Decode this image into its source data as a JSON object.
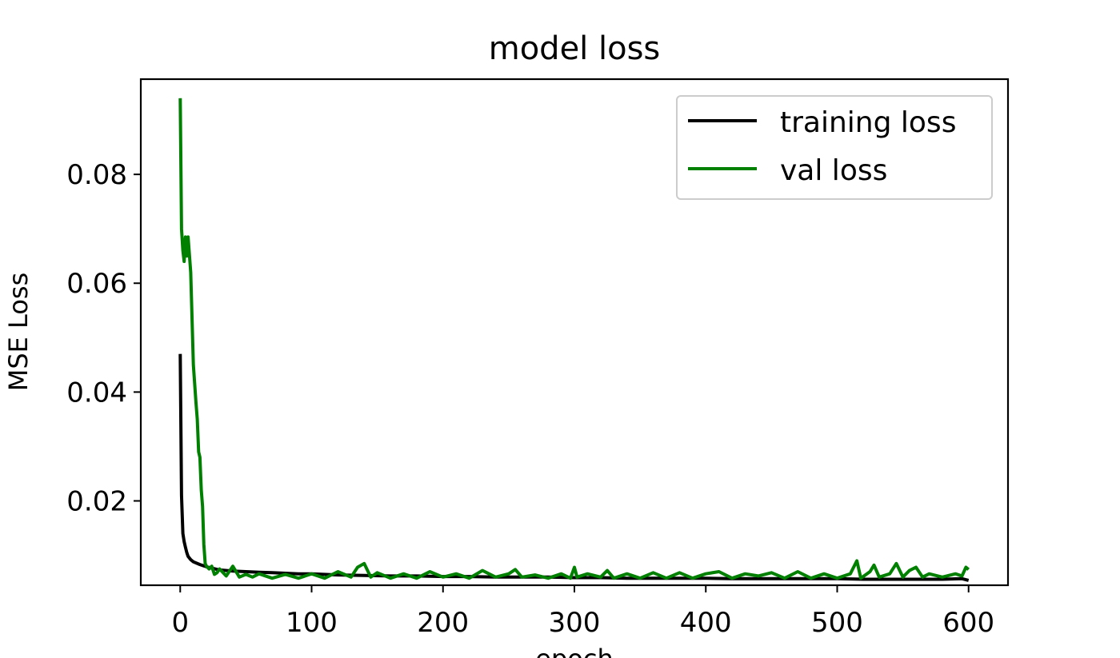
{
  "chart_data": {
    "type": "line",
    "title": "model loss",
    "xlabel": "epoch",
    "ylabel": "MSE Loss",
    "xlim": [
      -30,
      630
    ],
    "ylim": [
      0.0045,
      0.0975
    ],
    "xticks": [
      0,
      100,
      200,
      300,
      400,
      500,
      600
    ],
    "yticks": [
      0.02,
      0.04,
      0.06,
      0.08
    ],
    "ytick_labels": [
      "0.02",
      "0.04",
      "0.06",
      "0.08"
    ],
    "grid": false,
    "legend": "top-right",
    "series": [
      {
        "name": "training loss",
        "color": "#000000",
        "points": [
          [
            0,
            0.047
          ],
          [
            1,
            0.021
          ],
          [
            2,
            0.014
          ],
          [
            3,
            0.0125
          ],
          [
            4,
            0.0115
          ],
          [
            5,
            0.0105
          ],
          [
            6,
            0.0098
          ],
          [
            8,
            0.0092
          ],
          [
            10,
            0.0088
          ],
          [
            15,
            0.0083
          ],
          [
            20,
            0.0079
          ],
          [
            25,
            0.0076
          ],
          [
            30,
            0.0073
          ],
          [
            40,
            0.0071
          ],
          [
            50,
            0.007
          ],
          [
            60,
            0.0069
          ],
          [
            70,
            0.0068
          ],
          [
            80,
            0.0067
          ],
          [
            90,
            0.0066
          ],
          [
            100,
            0.0066
          ],
          [
            120,
            0.0064
          ],
          [
            140,
            0.0063
          ],
          [
            160,
            0.0062
          ],
          [
            180,
            0.0062
          ],
          [
            200,
            0.0061
          ],
          [
            220,
            0.0061
          ],
          [
            240,
            0.006
          ],
          [
            260,
            0.006
          ],
          [
            280,
            0.006
          ],
          [
            300,
            0.0059
          ],
          [
            320,
            0.0059
          ],
          [
            340,
            0.0058
          ],
          [
            360,
            0.0058
          ],
          [
            380,
            0.0058
          ],
          [
            400,
            0.0058
          ],
          [
            420,
            0.0057
          ],
          [
            440,
            0.0057
          ],
          [
            460,
            0.0057
          ],
          [
            480,
            0.0057
          ],
          [
            500,
            0.0057
          ],
          [
            520,
            0.0056
          ],
          [
            540,
            0.0056
          ],
          [
            560,
            0.0056
          ],
          [
            580,
            0.0056
          ],
          [
            595,
            0.0057
          ],
          [
            600,
            0.0054
          ]
        ]
      },
      {
        "name": "val loss",
        "color": "#008000",
        "points": [
          [
            0,
            0.094
          ],
          [
            1,
            0.07
          ],
          [
            2,
            0.066
          ],
          [
            3,
            0.064
          ],
          [
            4,
            0.0685
          ],
          [
            5,
            0.065
          ],
          [
            6,
            0.0685
          ],
          [
            8,
            0.062
          ],
          [
            10,
            0.045
          ],
          [
            12,
            0.038
          ],
          [
            13,
            0.035
          ],
          [
            14,
            0.029
          ],
          [
            15,
            0.028
          ],
          [
            16,
            0.022
          ],
          [
            17,
            0.019
          ],
          [
            18,
            0.012
          ],
          [
            19,
            0.0085
          ],
          [
            20,
            0.008
          ],
          [
            22,
            0.0075
          ],
          [
            24,
            0.008
          ],
          [
            26,
            0.0065
          ],
          [
            28,
            0.0068
          ],
          [
            30,
            0.0075
          ],
          [
            35,
            0.0062
          ],
          [
            40,
            0.008
          ],
          [
            45,
            0.006
          ],
          [
            50,
            0.0065
          ],
          [
            55,
            0.006
          ],
          [
            60,
            0.0066
          ],
          [
            70,
            0.0058
          ],
          [
            80,
            0.0065
          ],
          [
            90,
            0.0058
          ],
          [
            100,
            0.0066
          ],
          [
            110,
            0.0058
          ],
          [
            120,
            0.007
          ],
          [
            130,
            0.006
          ],
          [
            135,
            0.0078
          ],
          [
            140,
            0.0085
          ],
          [
            145,
            0.006
          ],
          [
            150,
            0.0068
          ],
          [
            160,
            0.0058
          ],
          [
            170,
            0.0066
          ],
          [
            180,
            0.0058
          ],
          [
            190,
            0.007
          ],
          [
            200,
            0.006
          ],
          [
            210,
            0.0066
          ],
          [
            220,
            0.0058
          ],
          [
            230,
            0.0072
          ],
          [
            240,
            0.006
          ],
          [
            250,
            0.0066
          ],
          [
            255,
            0.0074
          ],
          [
            260,
            0.006
          ],
          [
            270,
            0.0064
          ],
          [
            280,
            0.0058
          ],
          [
            290,
            0.0066
          ],
          [
            297,
            0.0058
          ],
          [
            300,
            0.0078
          ],
          [
            302,
            0.006
          ],
          [
            310,
            0.0066
          ],
          [
            320,
            0.006
          ],
          [
            325,
            0.0072
          ],
          [
            330,
            0.0058
          ],
          [
            340,
            0.0066
          ],
          [
            350,
            0.0058
          ],
          [
            360,
            0.0068
          ],
          [
            370,
            0.0058
          ],
          [
            380,
            0.0068
          ],
          [
            390,
            0.0058
          ],
          [
            400,
            0.0066
          ],
          [
            410,
            0.007
          ],
          [
            420,
            0.0058
          ],
          [
            430,
            0.0066
          ],
          [
            440,
            0.0062
          ],
          [
            450,
            0.0068
          ],
          [
            460,
            0.0058
          ],
          [
            470,
            0.007
          ],
          [
            480,
            0.0058
          ],
          [
            490,
            0.0066
          ],
          [
            500,
            0.0058
          ],
          [
            510,
            0.0066
          ],
          [
            515,
            0.009
          ],
          [
            518,
            0.0058
          ],
          [
            525,
            0.007
          ],
          [
            528,
            0.0082
          ],
          [
            532,
            0.006
          ],
          [
            540,
            0.0066
          ],
          [
            545,
            0.0085
          ],
          [
            550,
            0.006
          ],
          [
            555,
            0.0072
          ],
          [
            560,
            0.0078
          ],
          [
            565,
            0.006
          ],
          [
            570,
            0.0066
          ],
          [
            580,
            0.006
          ],
          [
            590,
            0.0066
          ],
          [
            595,
            0.0062
          ],
          [
            598,
            0.0078
          ],
          [
            600,
            0.0074
          ]
        ]
      }
    ]
  }
}
